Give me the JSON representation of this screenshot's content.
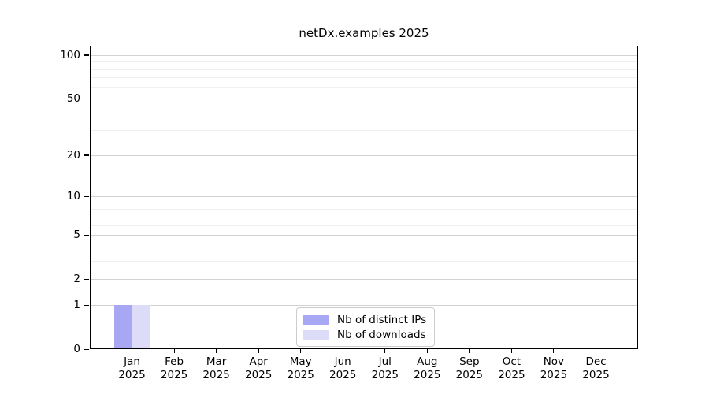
{
  "chart_data": {
    "type": "bar",
    "title": "netDx.examples 2025",
    "scale": "log1p",
    "ylim": [
      0,
      116
    ],
    "xlim": [
      -1,
      12
    ],
    "grid": "horizontal",
    "legend_position": "lower-center-inside",
    "categories": [
      {
        "month": "Jan",
        "year": "2025"
      },
      {
        "month": "Feb",
        "year": "2025"
      },
      {
        "month": "Mar",
        "year": "2025"
      },
      {
        "month": "Apr",
        "year": "2025"
      },
      {
        "month": "May",
        "year": "2025"
      },
      {
        "month": "Jun",
        "year": "2025"
      },
      {
        "month": "Jul",
        "year": "2025"
      },
      {
        "month": "Aug",
        "year": "2025"
      },
      {
        "month": "Sep",
        "year": "2025"
      },
      {
        "month": "Oct",
        "year": "2025"
      },
      {
        "month": "Nov",
        "year": "2025"
      },
      {
        "month": "Dec",
        "year": "2025"
      }
    ],
    "series": [
      {
        "name": "Nb of distinct IPs",
        "color": "#a7a7f3",
        "values": [
          1,
          0,
          0,
          0,
          0,
          0,
          0,
          0,
          0,
          0,
          0,
          0
        ]
      },
      {
        "name": "Nb of downloads",
        "color": "#dcdcf8",
        "values": [
          1,
          0,
          0,
          0,
          0,
          0,
          0,
          0,
          0,
          0,
          0,
          0
        ]
      }
    ],
    "y_major_ticks": [
      0,
      1,
      2,
      5,
      10,
      20,
      50,
      100
    ],
    "y_minor_gridlines": [
      3,
      4,
      6,
      7,
      8,
      9,
      30,
      40,
      60,
      70,
      80,
      90
    ],
    "xlabel": "",
    "ylabel": ""
  }
}
